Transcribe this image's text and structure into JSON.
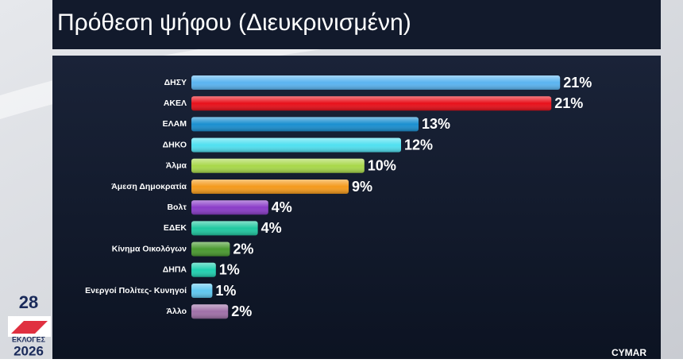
{
  "chart_data": {
    "type": "bar",
    "orientation": "horizontal",
    "title": "Πρόθεση ψήφου  (Διευκρινισμένη)",
    "categories": [
      "ΔΗΣΥ",
      "ΑΚΕΛ",
      "ΕΛΑΜ",
      "ΔΗΚΟ",
      "Άλμα",
      "Άμεση Δημοκρατία",
      "Βολτ",
      "ΕΔΕΚ",
      "Κίνημα Οικολόγων",
      "ΔΗΠΑ",
      "Ενεργοί Πολίτες- Κυνηγοί",
      "Άλλο"
    ],
    "values": [
      21.1,
      20.6,
      13.0,
      12.0,
      9.9,
      9.0,
      4.4,
      3.8,
      2.2,
      1.4,
      1.2,
      2.1
    ],
    "value_labels": [
      "21%",
      "21%",
      "13%",
      "12%",
      "10%",
      "9%",
      "4%",
      "4%",
      "2%",
      "1%",
      "1%",
      "2%"
    ],
    "colors": [
      "#5ab4f0",
      "#e8101a",
      "#1a8fd0",
      "#50e0f0",
      "#a8d84a",
      "#f49a1c",
      "#8a3cc8",
      "#20c8a0",
      "#4a9a30",
      "#20d0b0",
      "#60c8f0",
      "#a070a8"
    ]
  },
  "branding": {
    "number": "28",
    "election": "ΕΚΛΟΓΕΣ",
    "year": "2026",
    "pollster": "CYMAR"
  }
}
